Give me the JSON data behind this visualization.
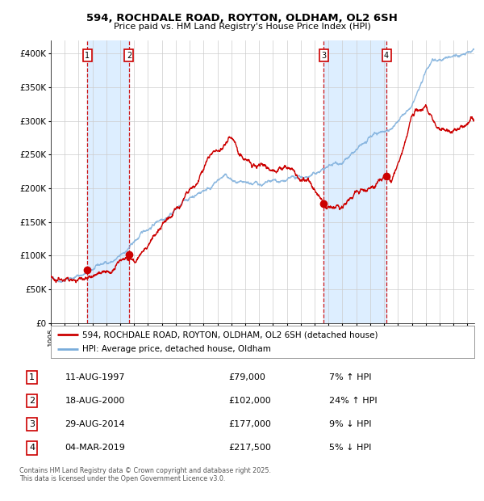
{
  "title": "594, ROCHDALE ROAD, ROYTON, OLDHAM, OL2 6SH",
  "subtitle": "Price paid vs. HM Land Registry's House Price Index (HPI)",
  "legend_red": "594, ROCHDALE ROAD, ROYTON, OLDHAM, OL2 6SH (detached house)",
  "legend_blue": "HPI: Average price, detached house, Oldham",
  "footer": "Contains HM Land Registry data © Crown copyright and database right 2025.\nThis data is licensed under the Open Government Licence v3.0.",
  "transactions": [
    {
      "num": 1,
      "date": "11-AUG-1997",
      "price": 79000,
      "price_str": "£79,000",
      "pct": "7%",
      "dir": "↑",
      "year": 1997.62
    },
    {
      "num": 2,
      "date": "18-AUG-2000",
      "price": 102000,
      "price_str": "£102,000",
      "pct": "24%",
      "dir": "↑",
      "year": 2000.63
    },
    {
      "num": 3,
      "date": "29-AUG-2014",
      "price": 177000,
      "price_str": "£177,000",
      "pct": "9%",
      "dir": "↓",
      "year": 2014.66
    },
    {
      "num": 4,
      "date": "04-MAR-2019",
      "price": 217500,
      "price_str": "£217,500",
      "pct": "5%",
      "dir": "↓",
      "year": 2019.17
    }
  ],
  "red_color": "#cc0000",
  "blue_color": "#7aaddb",
  "vline_color": "#cc0000",
  "shade_color": "#ddeeff",
  "bg_color": "#ffffff",
  "grid_color": "#cccccc",
  "ylim": [
    0,
    420000
  ],
  "xlim_start": 1995.0,
  "xlim_end": 2025.5,
  "yticks": [
    0,
    50000,
    100000,
    150000,
    200000,
    250000,
    300000,
    350000,
    400000
  ],
  "ylabels": [
    "£0",
    "£50K",
    "£100K",
    "£150K",
    "£200K",
    "£250K",
    "£300K",
    "£350K",
    "£400K"
  ]
}
